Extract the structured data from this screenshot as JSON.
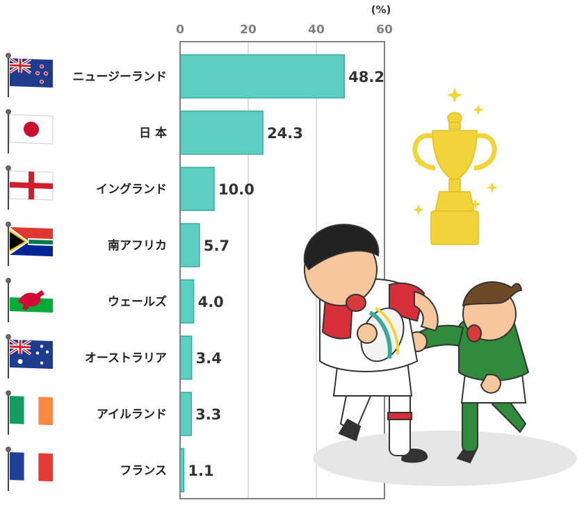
{
  "chart_data": {
    "type": "bar",
    "orientation": "horizontal",
    "unit": "(%)",
    "categories": [
      "ニュージーランド",
      "日 本",
      "イングランド",
      "南アフリカ",
      "ウェールズ",
      "オーストラリア",
      "アイルランド",
      "フランス"
    ],
    "values": [
      48.2,
      24.3,
      10.0,
      5.7,
      4.0,
      3.4,
      3.3,
      1.1
    ],
    "value_labels": [
      "48.2",
      "24.3",
      "10.0",
      "5.7",
      "4.0",
      "3.4",
      "3.3",
      "1.1"
    ],
    "xlim": [
      0,
      60
    ],
    "ticks": [
      "0",
      "20",
      "40",
      "60"
    ],
    "grid": true,
    "bar_color": "#5dcfc2",
    "bar_edge_color": "#3aa89b",
    "flags": [
      "new-zealand",
      "japan",
      "england",
      "south-africa",
      "wales",
      "australia",
      "ireland",
      "france"
    ]
  },
  "illustrations": {
    "trophy_color": "#f0d43a",
    "player_red_color": "#d62f3a",
    "player_green_color": "#2f8a3c"
  }
}
